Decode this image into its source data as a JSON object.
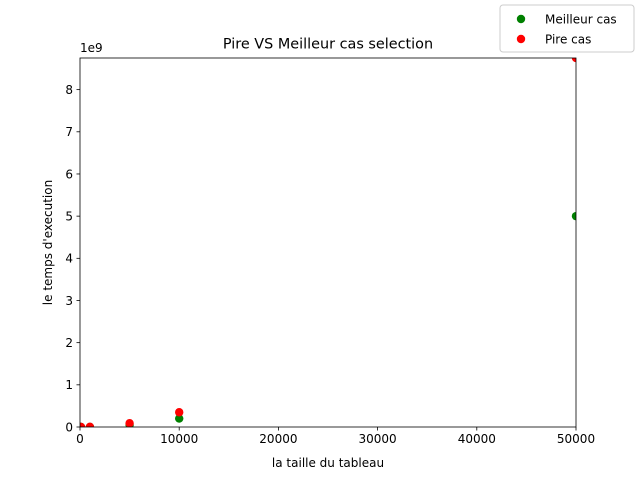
{
  "chart_data": {
    "type": "scatter",
    "title": "Pire VS Meilleur cas selection",
    "xlabel": "la taille du tableau",
    "ylabel": "le temps d'execution",
    "y_offset_label": "1e9",
    "xlim": [
      0,
      50000
    ],
    "ylim": [
      0,
      8.75
    ],
    "y_scale_note": "values in units of 1e9",
    "xticks": [
      0,
      10000,
      20000,
      30000,
      40000,
      50000
    ],
    "yticks": [
      0,
      1,
      2,
      3,
      4,
      5,
      6,
      7,
      8
    ],
    "grid": false,
    "legend_position": "top-right, outside the axes",
    "series": [
      {
        "name": "Meilleur cas",
        "color": "#008000",
        "x": [
          10,
          100,
          1000,
          5000,
          10000,
          50000
        ],
        "y": [
          0.0,
          0.0,
          0.002,
          0.05,
          0.2,
          5.0
        ]
      },
      {
        "name": "Pire cas",
        "color": "#ff0000",
        "x": [
          10,
          100,
          1000,
          5000,
          10000,
          50000
        ],
        "y": [
          0.0,
          0.0,
          0.0035,
          0.09,
          0.35,
          8.75
        ]
      }
    ]
  }
}
